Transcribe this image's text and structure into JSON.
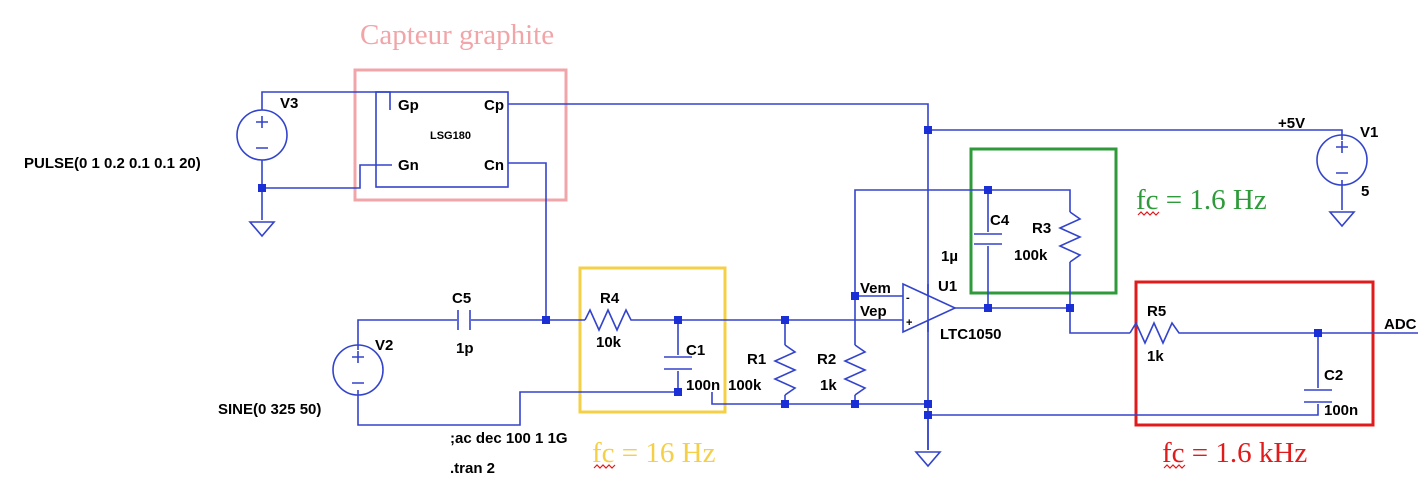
{
  "annotations": {
    "sensor_title": "Capteur graphite",
    "fc_stage1": "fc = 16 Hz",
    "fc_stage2": "fc = 1.6 Hz",
    "fc_stage3": "fc = 1.6 kHz",
    "colors": {
      "sensor": "#f2a5a8",
      "stage1": "#f5cf45",
      "stage2": "#2e9a3a",
      "stage3": "#e11b1b",
      "wire": "#3344cc"
    }
  },
  "sensor": {
    "part": "LSG180",
    "pin_gp": "Gp",
    "pin_gn": "Gn",
    "pin_cp": "Cp",
    "pin_cn": "Cn"
  },
  "sources": {
    "v3_name": "V3",
    "v3_value": "PULSE(0 1 0.2 0.1 0.1 20)",
    "v2_name": "V2",
    "v2_value": "SINE(0 325 50)",
    "v1_name": "V1",
    "v1_value": "5",
    "supply_net": "+5V"
  },
  "components": {
    "c5_name": "C5",
    "c5_value": "1p",
    "r4_name": "R4",
    "r4_value": "10k",
    "c1_name": "C1",
    "c1_value": "100n",
    "r1_name": "R1",
    "r1_value": "100k",
    "r2_name": "R2",
    "r2_value": "1k",
    "c4_name": "C4",
    "c4_value": "1µ",
    "r3_name": "R3",
    "r3_value": "100k",
    "r5_name": "R5",
    "r5_value": "1k",
    "c2_name": "C2",
    "c2_value": "100n"
  },
  "opamp": {
    "name": "U1",
    "part": "LTC1050",
    "vem": "Vem",
    "vep": "Vep",
    "minus": "-",
    "plus": "+"
  },
  "nets": {
    "adc": "ADC"
  },
  "directives": {
    "ac": ";ac dec 100 1 1G",
    "tran": ".tran 2"
  }
}
